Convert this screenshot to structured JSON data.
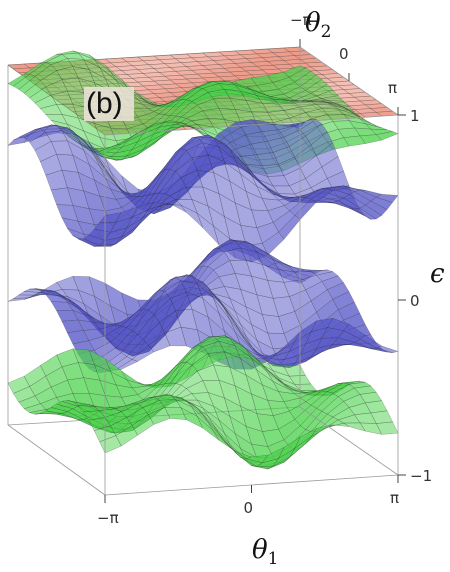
{
  "chart_data": {
    "type": "surface3d",
    "panel_label": "(b)",
    "xlabel": "θ1",
    "ylabel": "θ2",
    "zlabel": "ϵ",
    "xticks": [
      "−π",
      "0",
      "π"
    ],
    "yticks": [
      "π",
      "0",
      "−π"
    ],
    "zticks": [
      "1",
      "0",
      "−1"
    ],
    "xlim": [
      -3.14159,
      3.14159
    ],
    "ylim": [
      -3.14159,
      3.14159
    ],
    "zlim": [
      -1,
      1
    ],
    "series": [
      {
        "color": "#e8806a",
        "level": 1.0,
        "amp": 0.0,
        "phase": 0.0
      },
      {
        "color": "#4cd24c",
        "level": 0.88,
        "amp": 0.14,
        "phase": 0.6
      },
      {
        "color": "#5656c8",
        "level": 0.5,
        "amp": 0.22,
        "phase": 1.6
      },
      {
        "color": "#5656c8",
        "level": -0.22,
        "amp": 0.24,
        "phase": 2.7
      },
      {
        "color": "#4cd24c",
        "level": -0.72,
        "amp": 0.2,
        "phase": 3.8
      }
    ]
  }
}
